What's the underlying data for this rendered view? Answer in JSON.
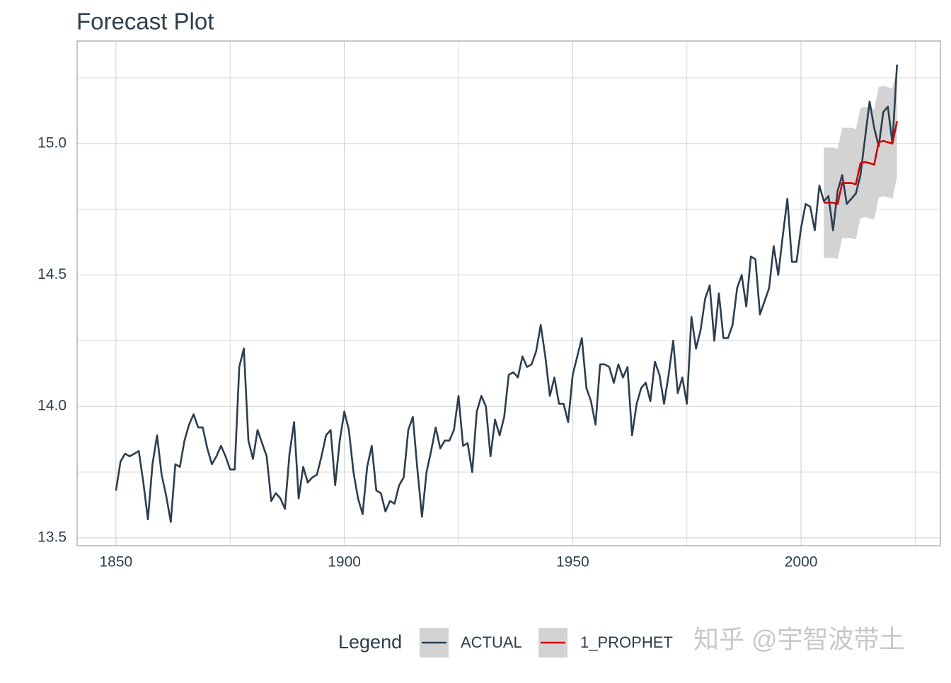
{
  "chart_data": {
    "type": "line",
    "title": "Forecast Plot",
    "xlim": [
      1841.5,
      2030.5
    ],
    "ylim": [
      13.47,
      15.39
    ],
    "xticks": [
      1850,
      1900,
      1950,
      2000
    ],
    "yticks": [
      {
        "value": 13.5,
        "label": "13.5"
      },
      {
        "value": 14.0,
        "label": "14.0"
      },
      {
        "value": 14.5,
        "label": "14.5"
      },
      {
        "value": 15.0,
        "label": "15.0"
      }
    ],
    "x_minor_ticks": [
      1875,
      1925,
      1975,
      2025
    ],
    "y_minor_ticks": [
      13.75,
      14.25,
      14.75,
      15.25
    ],
    "grid": true,
    "legend_title": "Legend",
    "legend_position": "bottom",
    "watermark": "知乎 @宇智波带土",
    "band_color": "#d3d3d3",
    "series": [
      {
        "name": "ACTUAL",
        "color": "#2c3e50",
        "x": [
          1850,
          1851,
          1852,
          1853,
          1854,
          1855,
          1856,
          1857,
          1858,
          1859,
          1860,
          1861,
          1862,
          1863,
          1864,
          1865,
          1866,
          1867,
          1868,
          1869,
          1870,
          1871,
          1872,
          1873,
          1874,
          1875,
          1876,
          1877,
          1878,
          1879,
          1880,
          1881,
          1882,
          1883,
          1884,
          1885,
          1886,
          1887,
          1888,
          1889,
          1890,
          1891,
          1892,
          1893,
          1894,
          1895,
          1896,
          1897,
          1898,
          1899,
          1900,
          1901,
          1902,
          1903,
          1904,
          1905,
          1906,
          1907,
          1908,
          1909,
          1910,
          1911,
          1912,
          1913,
          1914,
          1915,
          1916,
          1917,
          1918,
          1919,
          1920,
          1921,
          1922,
          1923,
          1924,
          1925,
          1926,
          1927,
          1928,
          1929,
          1930,
          1931,
          1932,
          1933,
          1934,
          1935,
          1936,
          1937,
          1938,
          1939,
          1940,
          1941,
          1942,
          1943,
          1944,
          1945,
          1946,
          1947,
          1948,
          1949,
          1950,
          1951,
          1952,
          1953,
          1954,
          1955,
          1956,
          1957,
          1958,
          1959,
          1960,
          1961,
          1962,
          1963,
          1964,
          1965,
          1966,
          1967,
          1968,
          1969,
          1970,
          1971,
          1972,
          1973,
          1974,
          1975,
          1976,
          1977,
          1978,
          1979,
          1980,
          1981,
          1982,
          1983,
          1984,
          1985,
          1986,
          1987,
          1988,
          1989,
          1990,
          1991,
          1992,
          1993,
          1994,
          1995,
          1996,
          1997,
          1998,
          1999,
          2000,
          2001,
          2002,
          2003,
          2004,
          2005,
          2006,
          2007,
          2008,
          2009,
          2010,
          2011,
          2012,
          2013,
          2014,
          2015,
          2016,
          2017,
          2018,
          2019,
          2020,
          2021
        ],
        "values": [
          13.68,
          13.79,
          13.82,
          13.81,
          13.82,
          13.83,
          13.71,
          13.57,
          13.78,
          13.89,
          13.74,
          13.66,
          13.56,
          13.78,
          13.77,
          13.87,
          13.93,
          13.97,
          13.92,
          13.92,
          13.84,
          13.78,
          13.81,
          13.85,
          13.81,
          13.76,
          13.76,
          14.15,
          14.22,
          13.87,
          13.8,
          13.91,
          13.86,
          13.81,
          13.64,
          13.67,
          13.65,
          13.61,
          13.82,
          13.94,
          13.65,
          13.77,
          13.71,
          13.73,
          13.74,
          13.81,
          13.89,
          13.91,
          13.7,
          13.87,
          13.98,
          13.91,
          13.75,
          13.65,
          13.59,
          13.77,
          13.85,
          13.68,
          13.67,
          13.6,
          13.64,
          13.63,
          13.7,
          13.73,
          13.91,
          13.96,
          13.76,
          13.58,
          13.75,
          13.83,
          13.92,
          13.84,
          13.87,
          13.87,
          13.91,
          14.04,
          13.85,
          13.86,
          13.75,
          13.98,
          14.04,
          14.0,
          13.81,
          13.95,
          13.89,
          13.96,
          14.12,
          14.13,
          14.11,
          14.19,
          14.15,
          14.16,
          14.21,
          14.31,
          14.19,
          14.04,
          14.11,
          14.01,
          14.01,
          13.94,
          14.12,
          14.19,
          14.26,
          14.07,
          14.02,
          13.93,
          14.16,
          14.16,
          14.15,
          14.09,
          14.16,
          14.11,
          14.15,
          13.89,
          14.01,
          14.07,
          14.09,
          14.02,
          14.17,
          14.12,
          14.01,
          14.12,
          14.25,
          14.05,
          14.11,
          14.01,
          14.34,
          14.22,
          14.29,
          14.41,
          14.46,
          14.25,
          14.43,
          14.26,
          14.26,
          14.31,
          14.45,
          14.5,
          14.38,
          14.57,
          14.56,
          14.35,
          14.4,
          14.45,
          14.61,
          14.5,
          14.65,
          14.79,
          14.55,
          14.55,
          14.68,
          14.77,
          14.76,
          14.67,
          14.84,
          14.78,
          14.8,
          14.67,
          14.82,
          14.88,
          14.77,
          14.79,
          14.81,
          14.88,
          15.02,
          15.16,
          15.06,
          14.99,
          15.12,
          15.14,
          15.0,
          15.3
        ]
      },
      {
        "name": "1_PROPHET",
        "color": "#d10000",
        "x": [
          2005,
          2006,
          2007,
          2008,
          2009,
          2010,
          2011,
          2012,
          2013,
          2014,
          2015,
          2016,
          2017,
          2018,
          2019,
          2020,
          2021
        ],
        "values": [
          14.775,
          14.775,
          14.775,
          14.77,
          14.85,
          14.85,
          14.85,
          14.845,
          14.925,
          14.93,
          14.925,
          14.92,
          15.005,
          15.01,
          15.005,
          15.0,
          15.085
        ],
        "upper": [
          14.985,
          14.985,
          14.985,
          14.98,
          15.06,
          15.06,
          15.06,
          15.055,
          15.135,
          15.14,
          15.135,
          15.13,
          15.215,
          15.22,
          15.215,
          15.21,
          15.295
        ],
        "lower": [
          14.565,
          14.565,
          14.565,
          14.56,
          14.64,
          14.64,
          14.64,
          14.635,
          14.715,
          14.72,
          14.715,
          14.71,
          14.795,
          14.8,
          14.795,
          14.79,
          14.875
        ]
      }
    ]
  }
}
